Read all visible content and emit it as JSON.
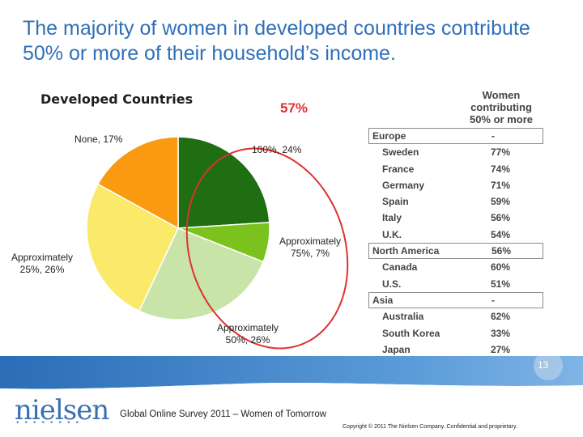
{
  "slide": {
    "title": "The majority of women in developed countries contribute 50% or more of their household’s income.",
    "page_number": "13",
    "footer_source": "Global Online Survey 2011 – Women of Tomorrow",
    "copyright": "Copyright © 2011 The Nielsen Company. Confidential and proprietary.",
    "logo_text": "nielsen",
    "logo_dots": "••••••••",
    "colors": {
      "title": "#2f6fba",
      "band": "#3b7fc4",
      "highlight": "#e03030"
    }
  },
  "chart_data": {
    "type": "pie",
    "title": "Developed Countries",
    "callout": "57%",
    "slices": [
      {
        "label_line1": "100%, 24%",
        "label_line2": "",
        "value": 24,
        "color": "#1f6e12"
      },
      {
        "label_line1": "Approximately",
        "label_line2": "75%, 7%",
        "value": 7,
        "color": "#7cc21f"
      },
      {
        "label_line1": "Approximately",
        "label_line2": "50%, 26%",
        "value": 26,
        "color": "#c8e4a8"
      },
      {
        "label_line1": "Approximately",
        "label_line2": "25%, 26%",
        "value": 26,
        "color": "#fbe96a"
      },
      {
        "label_line1": "None, 17%",
        "label_line2": "",
        "value": 17,
        "color": "#f99a10"
      }
    ]
  },
  "table": {
    "header_line1": "Women",
    "header_line2": "contributing",
    "header_line3": "50% or more",
    "rows": [
      {
        "name": "Europe",
        "value": "-",
        "region": true
      },
      {
        "name": "Sweden",
        "value": "77%",
        "region": false
      },
      {
        "name": "France",
        "value": "74%",
        "region": false
      },
      {
        "name": "Germany",
        "value": "71%",
        "region": false
      },
      {
        "name": "Spain",
        "value": "59%",
        "region": false
      },
      {
        "name": "Italy",
        "value": "56%",
        "region": false
      },
      {
        "name": "U.K.",
        "value": "54%",
        "region": false
      },
      {
        "name": "North America",
        "value": "56%",
        "region": true
      },
      {
        "name": "Canada",
        "value": "60%",
        "region": false
      },
      {
        "name": "U.S.",
        "value": "51%",
        "region": false
      },
      {
        "name": "Asia",
        "value": "-",
        "region": true
      },
      {
        "name": "Australia",
        "value": "62%",
        "region": false
      },
      {
        "name": "South Korea",
        "value": "33%",
        "region": false
      },
      {
        "name": "Japan",
        "value": "27%",
        "region": false
      }
    ]
  }
}
